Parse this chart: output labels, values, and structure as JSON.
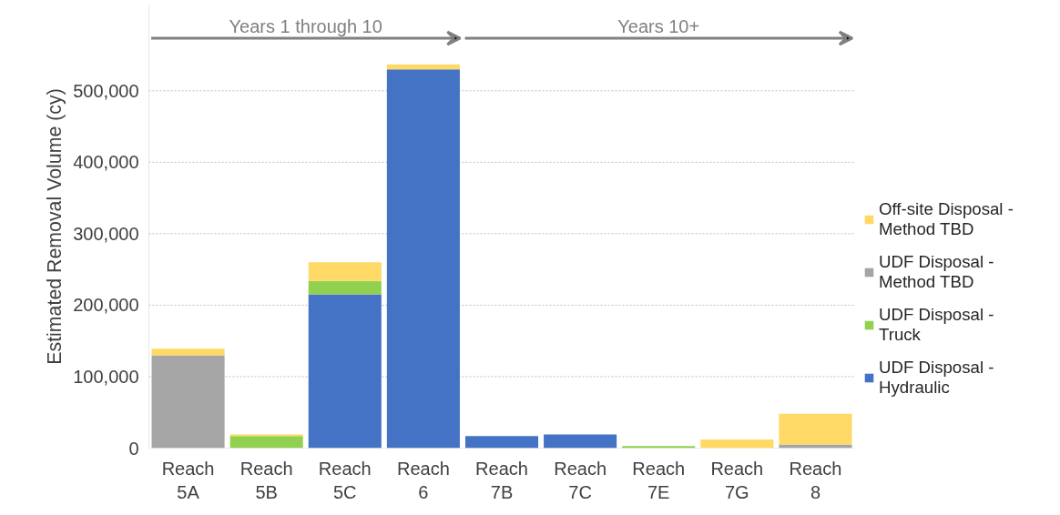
{
  "chart_data": {
    "type": "bar",
    "stacked": true,
    "ylabel": "Estimated Removal Volume (cy)",
    "categories": [
      "Reach 5A",
      "Reach 5B",
      "Reach 5C",
      "Reach 6",
      "Reach 7B",
      "Reach 7C",
      "Reach 7E",
      "Reach 7G",
      "Reach 8"
    ],
    "series": [
      {
        "name": "UDF Disposal - Hydraulic",
        "color": "#4472c4",
        "values": [
          0,
          0,
          215000,
          530000,
          17000,
          19000,
          0,
          0,
          0
        ]
      },
      {
        "name": "UDF Disposal - Truck",
        "color": "#92d050",
        "values": [
          0,
          17000,
          19000,
          0,
          0,
          0,
          3000,
          0,
          0
        ]
      },
      {
        "name": "UDF Disposal - Method TBD",
        "color": "#a5a5a5",
        "values": [
          130000,
          0,
          0,
          0,
          0,
          0,
          0,
          0,
          5000
        ]
      },
      {
        "name": "Off-site Disposal - Method TBD",
        "color": "#ffd966",
        "values": [
          9000,
          2000,
          26000,
          7000,
          0,
          0,
          0,
          12000,
          43000
        ]
      }
    ],
    "ylim": [
      0,
      620000
    ],
    "yticks": [
      0,
      {
        "value": 100000,
        "label": "100,000"
      },
      {
        "value": 200000,
        "label": "200,000"
      },
      {
        "value": 300000,
        "label": "300,000"
      },
      {
        "value": 400000,
        "label": "400,000"
      },
      {
        "value": 500000,
        "label": "500,000"
      }
    ],
    "grid": "y",
    "legend": "right",
    "annotations": [
      "Years 1 through 10",
      "Years 10+"
    ]
  }
}
